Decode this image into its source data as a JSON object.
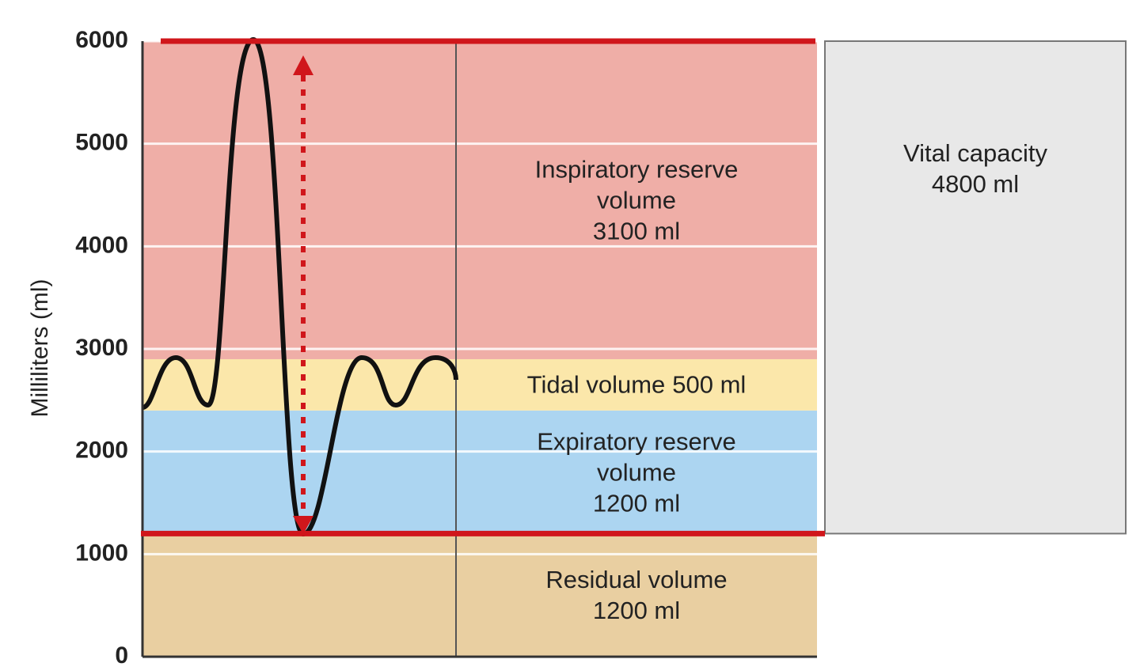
{
  "chart_data": {
    "type": "stacked-band",
    "y_label": "Milliliters (ml)",
    "ylim": [
      0,
      6000
    ],
    "yticks": [
      0,
      1000,
      2000,
      3000,
      4000,
      5000,
      6000
    ],
    "grid": true,
    "series": [
      {
        "name": "Residual volume",
        "color": "#e9cfa1",
        "values": [
          1200
        ],
        "value_labels": [
          "1200 ml"
        ]
      },
      {
        "name": "Expiratory reserve volume",
        "color": "#acd5f1",
        "values": [
          1200
        ],
        "value_labels": [
          "1200 ml"
        ]
      },
      {
        "name": "Tidal volume",
        "color": "#fbe7aa",
        "values": [
          500
        ],
        "value_labels": [
          "500 ml"
        ]
      },
      {
        "name": "Inspiratory reserve volume",
        "color": "#efaea7",
        "values": [
          3100
        ],
        "value_labels": [
          "3100 ml"
        ]
      }
    ],
    "capacity": {
      "name": "Vital capacity",
      "color": "#e8e8e8",
      "value": 4800,
      "value_label": "4800 ml"
    }
  }
}
